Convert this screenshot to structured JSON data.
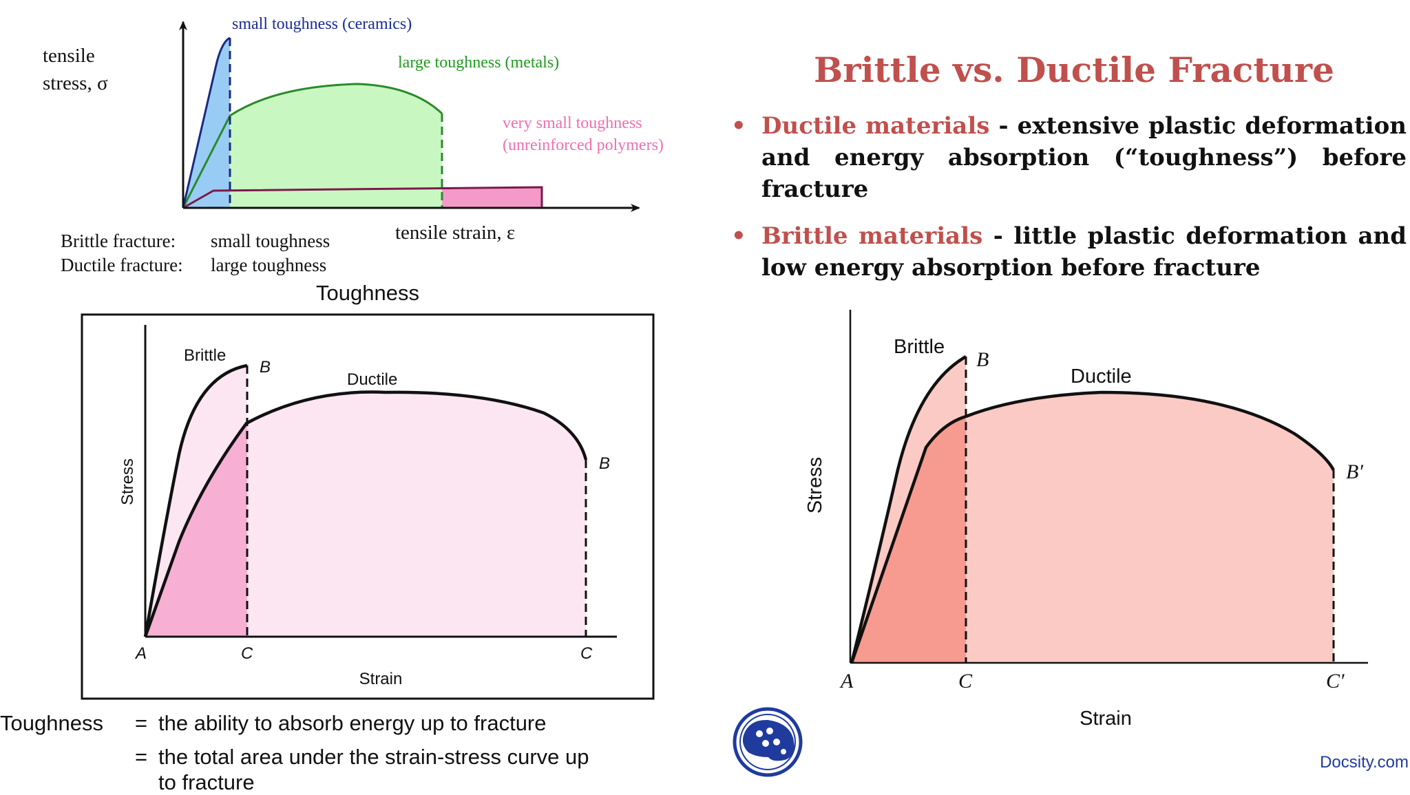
{
  "slide": {
    "title": "Brittle vs. Ductile Fracture",
    "bullets": [
      {
        "term": "Ductile materials",
        "text": " - extensive plastic deformation and energy absorption (“toughness”) before fracture"
      },
      {
        "term": "Brittle materials",
        "text": " - little plastic deformation and low energy absorption before fracture"
      }
    ],
    "watermark": "Docsity.com",
    "logo_icon": "docsity-logo-icon"
  },
  "diagram_top": {
    "y_label_line1": "tensile",
    "y_label_line2": "stress, σ",
    "x_label": "tensile strain, ε",
    "curve_ceramics": "small toughness (ceramics)",
    "curve_metals": "large toughness (metals)",
    "curve_polymers_line1": "very small toughness",
    "curve_polymers_line2": "(unreinforced polymers)",
    "legend": [
      {
        "label": "Brittle fracture:",
        "value": "small toughness"
      },
      {
        "label": "Ductile fracture:",
        "value": "large toughness"
      }
    ],
    "colors": {
      "ceramics": "#99ccf5",
      "metals": "#c9f7c2",
      "polymers": "#f59ac8",
      "ceramics_line": "#1a2a80",
      "metals_line": "#2a8a2a",
      "polymers_line": "#7a1a4a",
      "label_blue": "#1a2a9a",
      "label_green": "#1f9a1f",
      "label_pink": "#ee6fb0"
    }
  },
  "diagram_left": {
    "title": "Toughness",
    "brittle_label": "Brittle",
    "ductile_label": "Ductile",
    "point_b_brittle": "B",
    "point_b_ductile": "B",
    "point_a": "A",
    "point_c_brittle": "C",
    "point_c_ductile": "C",
    "x_label": "Strain",
    "y_label": "Stress",
    "colors": {
      "brittle_fill": "#f7b0d4",
      "ductile_fill": "#fce6f2"
    }
  },
  "diagram_right": {
    "brittle_label": "Brittle",
    "ductile_label": "Ductile",
    "point_b": "B",
    "point_b_prime": "B′",
    "point_a": "A",
    "point_c": "C",
    "point_c_prime": "C′",
    "x_label": "Strain",
    "y_label": "Stress",
    "colors": {
      "brittle_fill": "#f79a90",
      "ductile_fill": "#fccac4"
    }
  },
  "definition": {
    "label": "Toughness",
    "line1": "the ability to absorb energy up to fracture",
    "line2": "the total area under the strain-stress curve up",
    "line3": "to fracture",
    "equals": "="
  }
}
